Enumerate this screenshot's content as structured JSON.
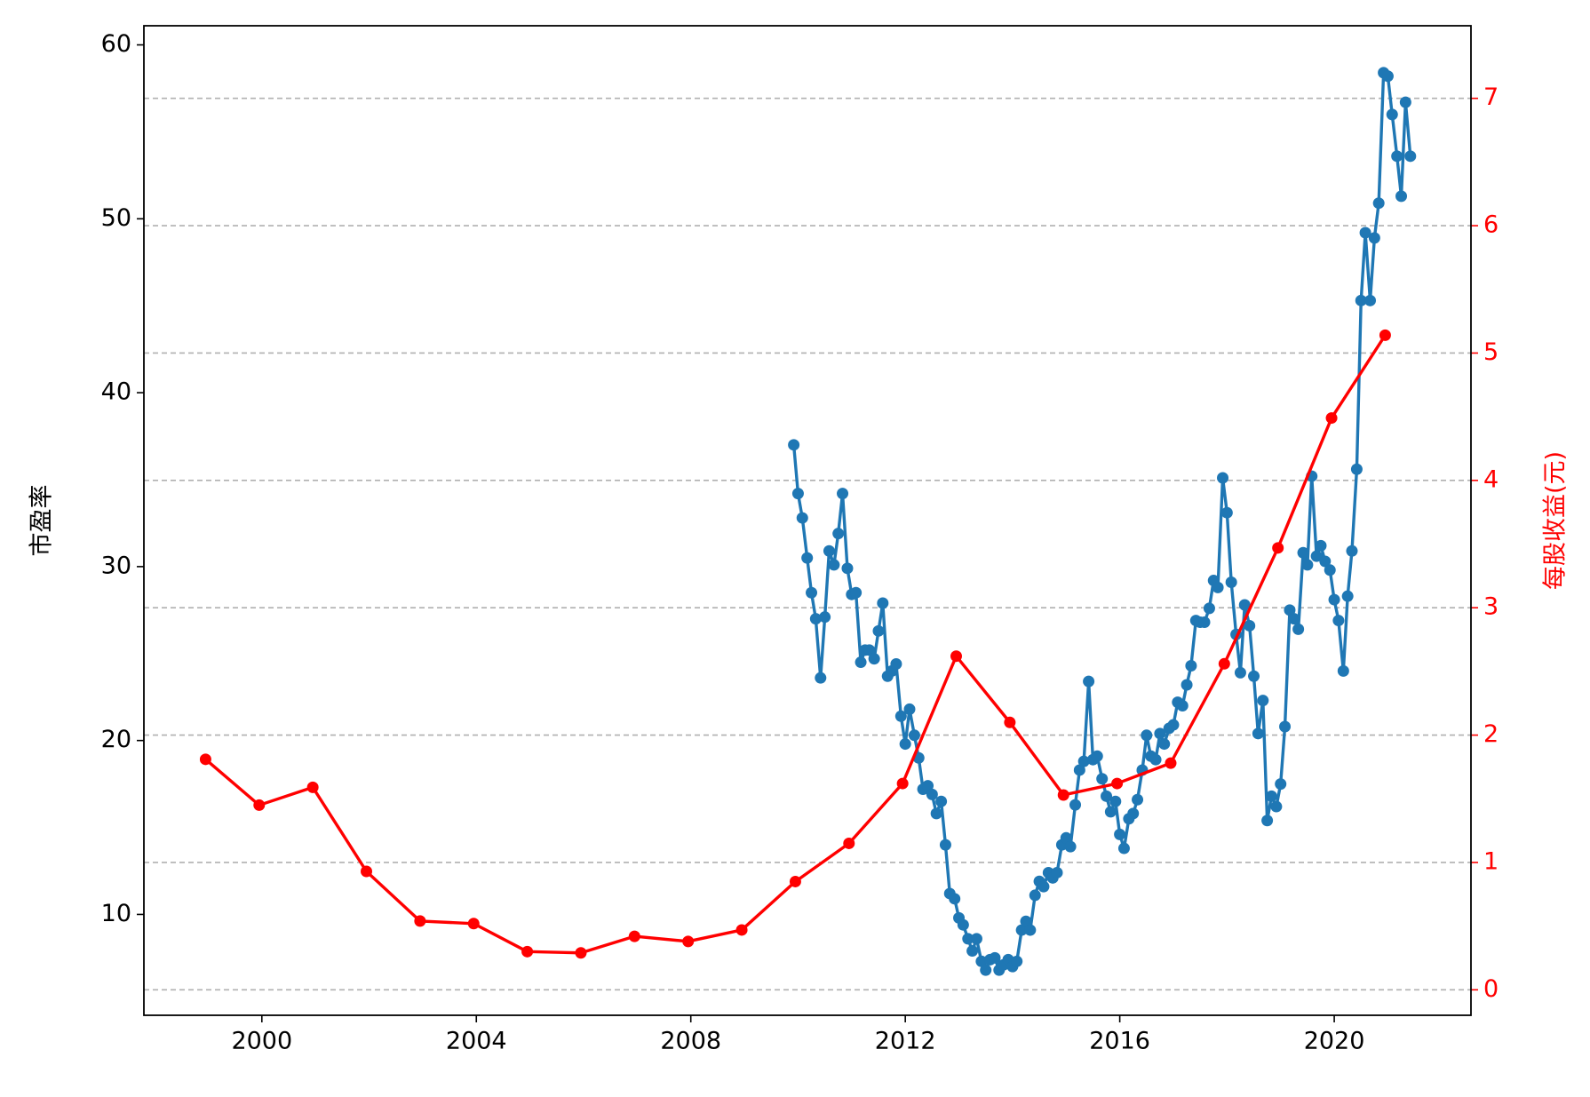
{
  "chart_data": {
    "type": "line",
    "ylabel": "市盈率",
    "y2label": "每股收益(元)",
    "xlim": [
      1997.8,
      2022.55
    ],
    "xticks": [
      2000,
      2004,
      2008,
      2012,
      2016,
      2020
    ],
    "ylim": [
      4.2,
      61.1
    ],
    "yticks": [
      10,
      20,
      30,
      40,
      50,
      60
    ],
    "y2lim": [
      -0.2,
      7.57
    ],
    "y2ticks": [
      0,
      1,
      2,
      3,
      4,
      5,
      6,
      7
    ],
    "grid": "y2",
    "y2color": "#ff0000",
    "series": [
      {
        "color": "#1f77b4",
        "axis": "y",
        "x": [
          2009.92,
          2010.0,
          2010.08,
          2010.17,
          2010.25,
          2010.33,
          2010.42,
          2010.5,
          2010.58,
          2010.67,
          2010.75,
          2010.83,
          2010.92,
          2011.0,
          2011.08,
          2011.17,
          2011.25,
          2011.33,
          2011.42,
          2011.5,
          2011.58,
          2011.67,
          2011.75,
          2011.83,
          2011.92,
          2012.0,
          2012.08,
          2012.17,
          2012.25,
          2012.33,
          2012.42,
          2012.5,
          2012.58,
          2012.67,
          2012.75,
          2012.83,
          2012.92,
          2013.0,
          2013.08,
          2013.17,
          2013.25,
          2013.33,
          2013.42,
          2013.5,
          2013.58,
          2013.67,
          2013.75,
          2013.83,
          2013.92,
          2014.0,
          2014.08,
          2014.17,
          2014.25,
          2014.33,
          2014.42,
          2014.5,
          2014.58,
          2014.67,
          2014.75,
          2014.83,
          2014.92,
          2015.0,
          2015.08,
          2015.17,
          2015.25,
          2015.33,
          2015.42,
          2015.5,
          2015.58,
          2015.67,
          2015.75,
          2015.83,
          2015.92,
          2016.0,
          2016.08,
          2016.17,
          2016.25,
          2016.33,
          2016.42,
          2016.5,
          2016.58,
          2016.67,
          2016.75,
          2016.83,
          2016.92,
          2017.0,
          2017.08,
          2017.17,
          2017.25,
          2017.33,
          2017.42,
          2017.5,
          2017.58,
          2017.67,
          2017.75,
          2017.83,
          2017.92,
          2018.0,
          2018.08,
          2018.17,
          2018.25,
          2018.33,
          2018.42,
          2018.5,
          2018.58,
          2018.67,
          2018.75,
          2018.83,
          2018.92,
          2019.0,
          2019.08,
          2019.17,
          2019.25,
          2019.33,
          2019.42,
          2019.5,
          2019.58,
          2019.67,
          2019.75,
          2019.83,
          2019.92,
          2020.0,
          2020.08,
          2020.17,
          2020.25,
          2020.33,
          2020.42,
          2020.5,
          2020.58,
          2020.67,
          2020.75,
          2020.83,
          2020.92,
          2021.0,
          2021.08,
          2021.17,
          2021.25,
          2021.33,
          2021.42
        ],
        "values": [
          37.0,
          34.2,
          32.8,
          30.5,
          28.5,
          27.0,
          23.6,
          27.1,
          30.9,
          30.1,
          31.9,
          34.2,
          29.9,
          28.4,
          28.5,
          24.5,
          25.2,
          25.2,
          24.7,
          26.3,
          27.9,
          23.7,
          24.0,
          24.4,
          21.4,
          19.8,
          21.8,
          20.3,
          19.0,
          17.2,
          17.4,
          16.9,
          15.8,
          16.5,
          14.0,
          11.2,
          10.9,
          9.8,
          9.4,
          8.6,
          7.9,
          8.6,
          7.3,
          6.8,
          7.4,
          7.5,
          6.8,
          7.1,
          7.4,
          7.0,
          7.3,
          9.1,
          9.6,
          9.1,
          11.1,
          11.9,
          11.6,
          12.4,
          12.1,
          12.4,
          14.0,
          14.4,
          13.9,
          16.3,
          18.3,
          18.8,
          23.4,
          18.9,
          19.1,
          17.8,
          16.8,
          15.9,
          16.5,
          14.6,
          13.8,
          15.5,
          15.8,
          16.6,
          18.3,
          20.3,
          19.1,
          18.9,
          20.4,
          19.8,
          20.7,
          20.9,
          22.2,
          22.0,
          23.2,
          24.3,
          26.9,
          26.8,
          26.8,
          27.6,
          29.2,
          28.8,
          35.1,
          33.1,
          29.1,
          26.1,
          23.9,
          27.8,
          26.6,
          23.7,
          20.4,
          22.3,
          15.4,
          16.8,
          16.2,
          17.5,
          20.8,
          27.5,
          27.0,
          26.4,
          30.8,
          30.1,
          35.2,
          30.6,
          31.2,
          30.3,
          29.8,
          28.1,
          26.9,
          24.0,
          28.3,
          30.9,
          35.6,
          45.3,
          49.2,
          45.3,
          48.9,
          50.9,
          58.4,
          58.2,
          56.0,
          53.6,
          51.3,
          56.7,
          53.6
        ]
      },
      {
        "color": "#ff0000",
        "axis": "y2",
        "x": [
          1998.95,
          1999.95,
          2000.95,
          2001.95,
          2002.95,
          2003.95,
          2004.95,
          2005.95,
          2006.95,
          2007.95,
          2008.95,
          2009.95,
          2010.95,
          2011.95,
          2012.95,
          2013.95,
          2014.95,
          2015.95,
          2016.95,
          2017.95,
          2018.95,
          2019.95,
          2020.95
        ],
        "values": [
          1.81,
          1.45,
          1.59,
          0.93,
          0.54,
          0.52,
          0.3,
          0.29,
          0.42,
          0.38,
          0.47,
          0.85,
          1.15,
          1.62,
          2.62,
          2.1,
          1.53,
          1.62,
          1.78,
          2.56,
          3.47,
          4.49,
          5.14
        ]
      }
    ]
  }
}
